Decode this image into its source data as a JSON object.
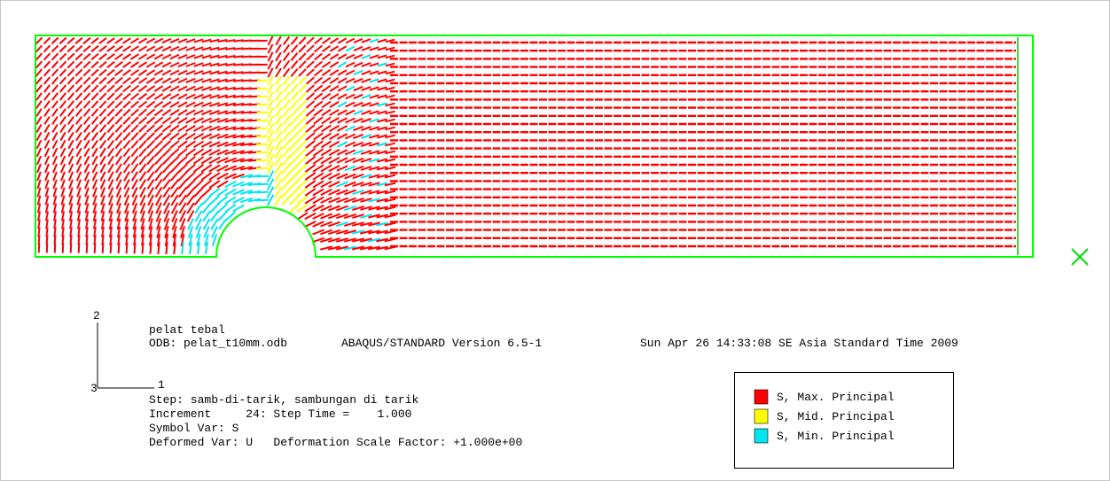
{
  "viewport": {
    "triad": {
      "axis_2": "2",
      "axis_3": "3",
      "axis_1": "1"
    },
    "info": {
      "title": "pelat tebal",
      "odb": "ODB: pelat_t10mm.odb",
      "version": "ABAQUS/STANDARD Version 6.5-1",
      "date": "Sun Apr 26 14:33:08 SE Asia Standard Time 2009",
      "step": "Step: samb-di-tarik, sambungan di tarik",
      "increment": "Increment     24: Step Time =    1.000",
      "symbol_var": "Symbol Var: S",
      "deformed_var": "Deformed Var: U   Deformation Scale Factor: +1.000e+00"
    },
    "legend": [
      {
        "label": "S, Max. Principal",
        "color": "#ff0000"
      },
      {
        "label": "S, Mid. Principal",
        "color": "#ffff00"
      },
      {
        "label": "S, Min. Principal",
        "color": "#00e5ee"
      }
    ]
  }
}
